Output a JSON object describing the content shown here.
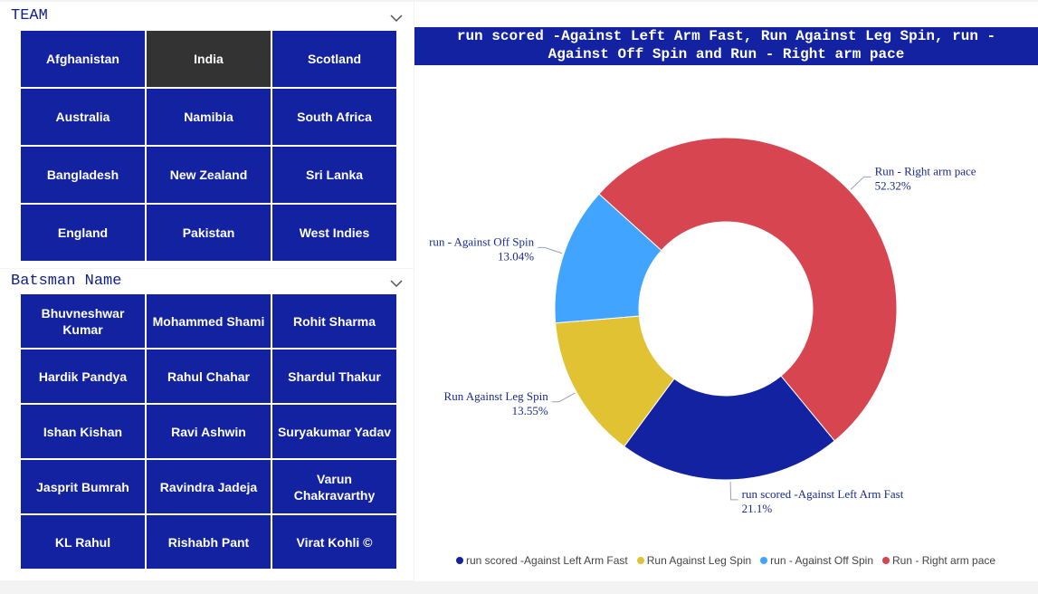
{
  "team_slicer": {
    "title": "TEAM",
    "selected": "India",
    "items": [
      "Afghanistan",
      "India",
      "Scotland",
      "Australia",
      "Namibia",
      "South Africa",
      "Bangladesh",
      "New Zealand",
      "Sri Lanka",
      "England",
      "Pakistan",
      "West Indies"
    ]
  },
  "batsman_slicer": {
    "title": "Batsman Name",
    "items": [
      "Bhuvneshwar Kumar",
      "Mohammed Shami",
      "Rohit Sharma",
      "Hardik Pandya",
      "Rahul Chahar",
      "Shardul Thakur",
      "Ishan Kishan",
      "Ravi Ashwin",
      "Suryakumar Yadav",
      "Jasprit Bumrah",
      "Ravindra Jadeja",
      "Varun Chakravarthy",
      "KL Rahul",
      "Rishabh Pant",
      "Virat Kohli ©"
    ]
  },
  "chart_data": {
    "type": "pie",
    "title_line1": "run scored -Against Left Arm Fast, Run Against Leg Spin, run -",
    "title_line2": "Against Off Spin and Run - Right arm pace",
    "series": [
      {
        "name": "run scored -Against Left Arm Fast",
        "value": 21.1,
        "label_pct": "21.1%",
        "color": "#1222a0"
      },
      {
        "name": "Run Against Leg Spin",
        "value": 13.55,
        "label_pct": "13.55%",
        "color": "#e0c232"
      },
      {
        "name": "run - Against Off Spin",
        "value": 13.04,
        "label_pct": "13.04%",
        "color": "#41a5ff"
      },
      {
        "name": "Run - Right arm pace",
        "value": 52.32,
        "label_pct": "52.32%",
        "color": "#d64550"
      }
    ],
    "legend": [
      "run scored -Against Left Arm Fast",
      "Run  Against Leg Spin",
      "run - Against Off Spin",
      "Run - Right arm pace"
    ],
    "legend_placement": "bottom"
  }
}
